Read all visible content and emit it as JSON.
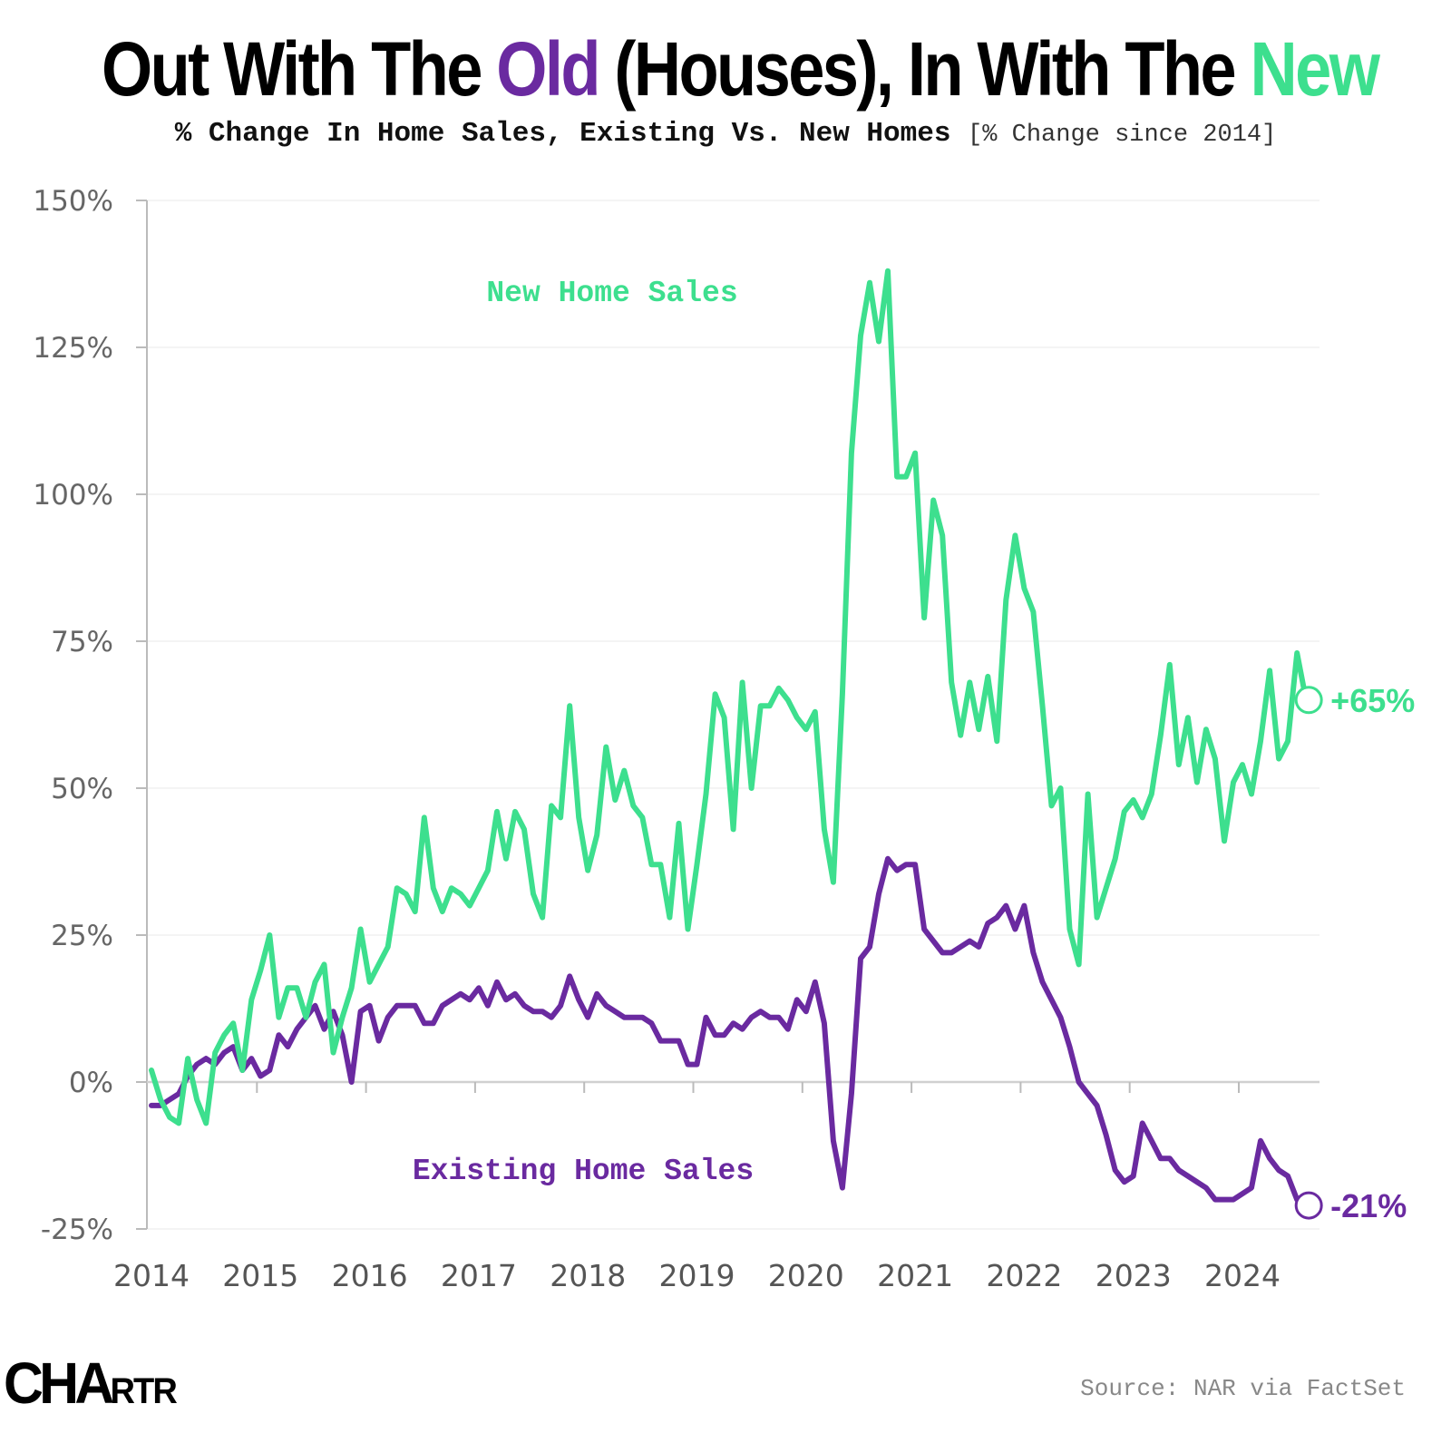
{
  "title": {
    "part1": "Out With The ",
    "old": "Old",
    "part2": " (Houses), In With The ",
    "new": "New"
  },
  "subtitle": {
    "main": "% Change In Home Sales, Existing Vs. New Homes",
    "unit": "[% Change since 2014]"
  },
  "logo": "CHARTR",
  "source": "Source: NAR via FactSet",
  "colors": {
    "new": "#3ddf8e",
    "existing": "#6a2aa0",
    "axis": "#bbbbbb",
    "grid": "#f0f0f0"
  },
  "chart_data": {
    "type": "line",
    "title": "% Change In Home Sales, Existing Vs. New Homes",
    "xlabel": "",
    "ylabel": "",
    "x_start": "2014-01",
    "x_frequency": "monthly",
    "xlim": [
      "2014-01",
      "2024-12"
    ],
    "x_ticks": [
      "2014",
      "2015",
      "2016",
      "2017",
      "2018",
      "2019",
      "2020",
      "2021",
      "2022",
      "2023",
      "2024"
    ],
    "ylim": [
      -25,
      150
    ],
    "y_ticks": [
      "150%",
      "125%",
      "100%",
      "75%",
      "50%",
      "25%",
      "0%",
      "-25%"
    ],
    "y_tick_values": [
      150,
      125,
      100,
      75,
      50,
      25,
      0,
      -25
    ],
    "grid": true,
    "legend": "inline labels",
    "series": [
      {
        "name": "New Home Sales",
        "end_label": "+65%",
        "color": "#3ddf8e",
        "values": [
          2,
          -3,
          -6,
          -7,
          4,
          -3,
          -7,
          5,
          8,
          10,
          2,
          14,
          19,
          25,
          11,
          16,
          16,
          11,
          17,
          20,
          5,
          11,
          16,
          26,
          17,
          20,
          23,
          33,
          32,
          29,
          45,
          33,
          29,
          33,
          32,
          30,
          33,
          36,
          46,
          38,
          46,
          43,
          32,
          28,
          47,
          45,
          64,
          45,
          36,
          42,
          57,
          48,
          53,
          47,
          45,
          37,
          37,
          28,
          44,
          26,
          37,
          49,
          66,
          62,
          43,
          68,
          50,
          64,
          64,
          67,
          65,
          62,
          60,
          63,
          43,
          34,
          66,
          107,
          127,
          136,
          126,
          138,
          103,
          103,
          107,
          79,
          99,
          93,
          68,
          59,
          68,
          60,
          69,
          58,
          82,
          93,
          84,
          80,
          64,
          47,
          50,
          26,
          20,
          49,
          28,
          33,
          38,
          46,
          48,
          45,
          49,
          59,
          71,
          54,
          62,
          51,
          60,
          55,
          41,
          51,
          54,
          49,
          58,
          70,
          55,
          58,
          73,
          65
        ]
      },
      {
        "name": "Existing Home Sales",
        "end_label": "-21%",
        "color": "#6a2aa0",
        "values": [
          -4,
          -4,
          -3,
          -2,
          1,
          3,
          4,
          3,
          5,
          6,
          2,
          4,
          1,
          2,
          8,
          6,
          9,
          11,
          13,
          9,
          12,
          8,
          0,
          12,
          13,
          7,
          11,
          13,
          13,
          13,
          10,
          10,
          13,
          14,
          15,
          14,
          16,
          13,
          17,
          14,
          15,
          13,
          12,
          12,
          11,
          13,
          18,
          14,
          11,
          15,
          13,
          12,
          11,
          11,
          11,
          10,
          7,
          7,
          7,
          3,
          3,
          11,
          8,
          8,
          10,
          9,
          11,
          12,
          11,
          11,
          9,
          14,
          12,
          17,
          10,
          -10,
          -18,
          -2,
          21,
          23,
          32,
          38,
          36,
          37,
          37,
          26,
          24,
          22,
          22,
          23,
          24,
          23,
          27,
          28,
          30,
          26,
          30,
          22,
          17,
          14,
          11,
          6,
          0,
          -2,
          -4,
          -9,
          -15,
          -17,
          -16,
          -7,
          -10,
          -13,
          -13,
          -15,
          -16,
          -17,
          -18,
          -20,
          -20,
          -20,
          -19,
          -18,
          -10,
          -13,
          -15,
          -16,
          -20,
          -21
        ]
      }
    ]
  }
}
